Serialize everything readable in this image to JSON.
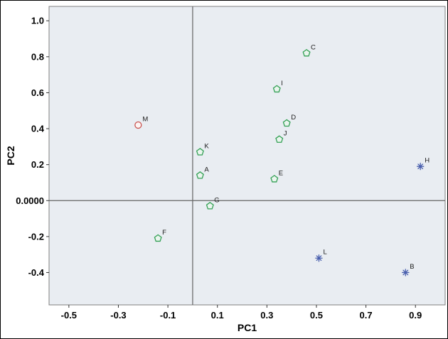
{
  "figure": {
    "background": "#ffffff",
    "border_color": "#000000"
  },
  "chart_data": {
    "type": "scatter",
    "title": "",
    "xlabel": "PC1",
    "ylabel": "PC2",
    "xlim": [
      -0.58,
      1.02
    ],
    "ylim": [
      -0.58,
      1.08
    ],
    "x_ticks": [
      -0.5,
      -0.3,
      -0.1,
      0.1,
      0.3,
      0.5,
      0.7,
      0.9
    ],
    "x_tick_labels": [
      "-0.5",
      "-0.3",
      "-0.1",
      "0.1",
      "0.3",
      "0.5",
      "0.7",
      "0.9"
    ],
    "y_ticks": [
      -0.4,
      -0.2,
      0,
      0.2,
      0.4,
      0.6,
      0.8,
      1.0
    ],
    "y_tick_labels": [
      "-0.4",
      "-0.2",
      "0.0000",
      "0.2",
      "0.4",
      "0.6",
      "0.8",
      "1.0"
    ],
    "grid": false,
    "legend": "none",
    "reference_lines": {
      "x": 0,
      "y": 0
    },
    "panel_color": "#e9edf2",
    "panel_border_color": "#7f7f7f",
    "reference_line_color": "#646464",
    "tick_label_color": "#000000",
    "point_label_color": "#1a1a1a",
    "series": [
      {
        "name": "green-pentagons",
        "marker": "pentagon",
        "color": "#33a054",
        "fill": "#eaf5ee",
        "points": [
          {
            "label": "A",
            "x": 0.03,
            "y": 0.14
          },
          {
            "label": "C",
            "x": 0.46,
            "y": 0.82
          },
          {
            "label": "D",
            "x": 0.38,
            "y": 0.43
          },
          {
            "label": "E",
            "x": 0.33,
            "y": 0.12
          },
          {
            "label": "F",
            "x": -0.14,
            "y": -0.21
          },
          {
            "label": "G",
            "x": 0.07,
            "y": -0.03
          },
          {
            "label": "I",
            "x": 0.34,
            "y": 0.62
          },
          {
            "label": "J",
            "x": 0.35,
            "y": 0.34
          },
          {
            "label": "K",
            "x": 0.03,
            "y": 0.27
          }
        ]
      },
      {
        "name": "blue-stars",
        "marker": "star",
        "color": "#4a60ae",
        "fill": "none",
        "points": [
          {
            "label": "B",
            "x": 0.86,
            "y": -0.4
          },
          {
            "label": "H",
            "x": 0.92,
            "y": 0.19
          },
          {
            "label": "L",
            "x": 0.51,
            "y": -0.32
          }
        ]
      },
      {
        "name": "red-circle",
        "marker": "circle",
        "color": "#c9534f",
        "fill": "#fdf4f3",
        "points": [
          {
            "label": "M",
            "x": -0.22,
            "y": 0.42
          }
        ]
      }
    ]
  }
}
